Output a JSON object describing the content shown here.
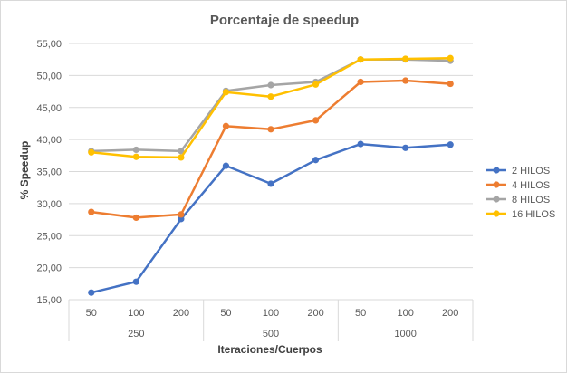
{
  "chart_data": {
    "type": "line",
    "title": "Porcentaje de speedup",
    "xlabel": "Iteraciones/Cuerpos",
    "ylabel": "% Speedup",
    "ylim": [
      15,
      55
    ],
    "y_ticks": [
      "15,00",
      "20,00",
      "25,00",
      "30,00",
      "35,00",
      "40,00",
      "45,00",
      "50,00",
      "55,00"
    ],
    "categories": [
      "50",
      "100",
      "200",
      "50",
      "100",
      "200",
      "50",
      "100",
      "200"
    ],
    "groups": [
      {
        "label": "250",
        "size": 3
      },
      {
        "label": "500",
        "size": 3
      },
      {
        "label": "1000",
        "size": 3
      }
    ],
    "series": [
      {
        "name": "2 HILOS",
        "color": "#4472C4",
        "values": [
          16.1,
          17.8,
          27.6,
          35.9,
          33.1,
          36.8,
          39.3,
          38.7,
          39.2
        ]
      },
      {
        "name": "4 HILOS",
        "color": "#ED7D31",
        "values": [
          28.7,
          27.8,
          28.3,
          42.1,
          41.6,
          43.0,
          49.0,
          49.2,
          48.7
        ]
      },
      {
        "name": "8 HILOS",
        "color": "#A5A5A5",
        "values": [
          38.2,
          38.4,
          38.2,
          47.6,
          48.5,
          49.0,
          52.5,
          52.5,
          52.3
        ]
      },
      {
        "name": "16 HILOS",
        "color": "#FFC000",
        "values": [
          38.0,
          37.3,
          37.2,
          47.4,
          46.7,
          48.6,
          52.5,
          52.6,
          52.7
        ]
      }
    ],
    "grid": true,
    "legend_position": "right"
  }
}
